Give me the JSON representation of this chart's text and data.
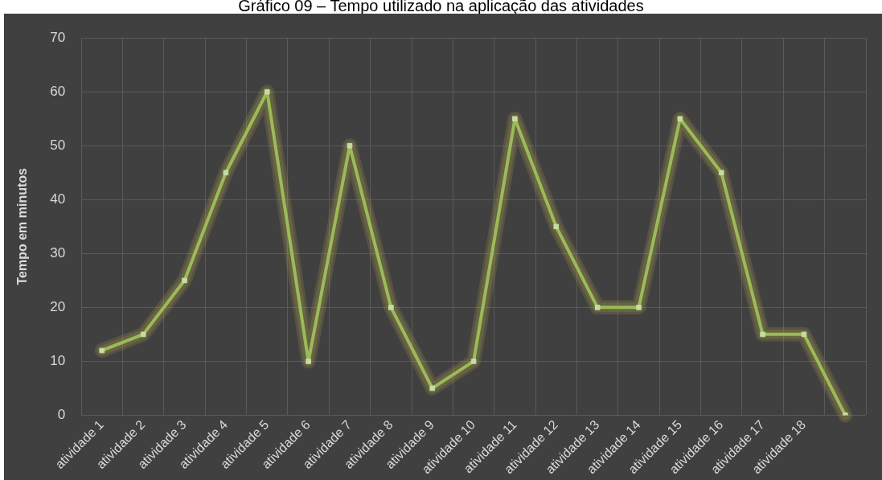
{
  "chart_data": {
    "type": "line",
    "title": "Gráfico 09 – Tempo utilizado na aplicação das atividades",
    "ylabel": "Tempo em minutos",
    "categories": [
      "atividade 1",
      "atividade 2",
      "atividade 3",
      "atividade 4",
      "atividade 5",
      "atividade 6",
      "atividade 7",
      "atividade 8",
      "atividade 9",
      "atividade 10",
      "atividade 11",
      "atividade 12",
      "atividade 13",
      "atividade 14",
      "atividade 15",
      "atividade 16",
      "atividade 17",
      "atividade 18",
      null
    ],
    "series": [
      {
        "color": "#9bbb59",
        "values": [
          12,
          15,
          25,
          45,
          60,
          10,
          50,
          20,
          5,
          10,
          55,
          35,
          20,
          20,
          55,
          45,
          15,
          15,
          0
        ]
      }
    ],
    "ylim": [
      0,
      70
    ],
    "yticks": [
      0,
      10,
      20,
      30,
      40,
      50,
      60,
      70
    ],
    "grid": true,
    "legend": false,
    "marker": "square",
    "line_style": "solid"
  }
}
